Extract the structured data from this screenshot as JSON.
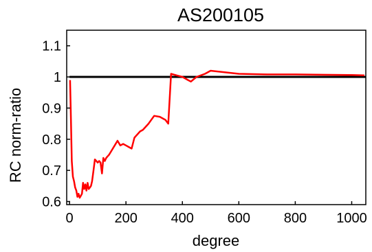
{
  "chart_data": {
    "type": "line",
    "title": "AS200105",
    "xlabel": "degree",
    "ylabel": "RC norm-ratio",
    "xlim": [
      -10,
      1050
    ],
    "ylim": [
      0.59,
      1.15
    ],
    "xticks": [
      0,
      200,
      400,
      600,
      800,
      1000
    ],
    "xtick_labels": [
      "0",
      "200",
      "400",
      "600",
      "800",
      "1000"
    ],
    "yticks": [
      0.6,
      0.7,
      0.8,
      0.9,
      1.0,
      1.1
    ],
    "ytick_labels": [
      "0.6",
      "0.7",
      "0.8",
      "0.9",
      "1",
      "1.1"
    ],
    "grid": false,
    "legend": "none",
    "series": [
      {
        "color": "#000000",
        "x": [
          0,
          1050
        ],
        "y": [
          1.0,
          1.0
        ]
      },
      {
        "color": "#ff0000",
        "x": [
          2,
          5,
          8,
          12,
          16,
          20,
          24,
          28,
          32,
          36,
          40,
          44,
          48,
          52,
          56,
          60,
          64,
          68,
          72,
          76,
          80,
          85,
          90,
          95,
          100,
          105,
          110,
          115,
          120,
          125,
          130,
          135,
          140,
          150,
          160,
          170,
          180,
          190,
          200,
          210,
          220,
          230,
          240,
          250,
          260,
          280,
          300,
          320,
          340,
          350,
          360,
          380,
          400,
          420,
          430,
          450,
          480,
          500,
          550,
          600,
          700,
          800,
          900,
          1000,
          1045
        ],
        "y": [
          0.99,
          0.86,
          0.73,
          0.68,
          0.665,
          0.645,
          0.635,
          0.615,
          0.625,
          0.612,
          0.618,
          0.625,
          0.66,
          0.64,
          0.655,
          0.635,
          0.66,
          0.64,
          0.645,
          0.65,
          0.665,
          0.7,
          0.735,
          0.73,
          0.725,
          0.73,
          0.725,
          0.69,
          0.74,
          0.73,
          0.74,
          0.745,
          0.75,
          0.765,
          0.78,
          0.795,
          0.78,
          0.785,
          0.78,
          0.775,
          0.77,
          0.805,
          0.815,
          0.825,
          0.83,
          0.85,
          0.875,
          0.872,
          0.862,
          0.85,
          1.01,
          1.005,
          1.0,
          0.99,
          0.985,
          1.0,
          1.01,
          1.02,
          1.015,
          1.01,
          1.008,
          1.008,
          1.007,
          1.006,
          1.005
        ]
      }
    ]
  }
}
